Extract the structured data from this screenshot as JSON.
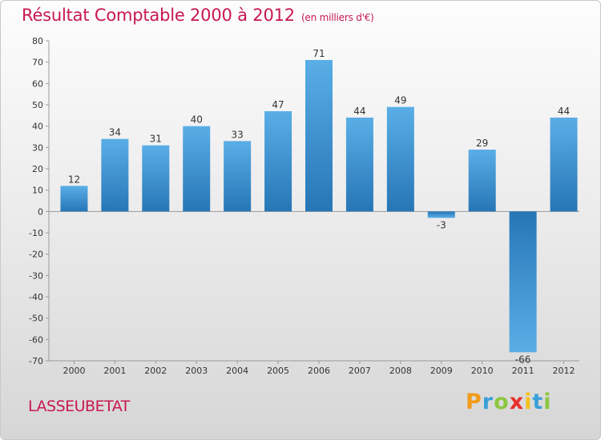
{
  "page": {
    "title": "Résultat Comptable 2000 à 2012",
    "subtitle": "(en milliers d'€)",
    "commune": "LASSEUBETAT",
    "logo": {
      "letters": [
        "P",
        "r",
        "o",
        "x",
        "i",
        "t",
        "i"
      ],
      "colors": [
        "#f29a1a",
        "#3aa0d8",
        "#8cc63f",
        "#e8302a",
        "#f2c21a",
        "#3aa0d8",
        "#8cc63f"
      ]
    }
  },
  "chart_data": {
    "type": "bar",
    "title": "Résultat Comptable 2000 à 2012",
    "subtitle": "(en milliers d'€)",
    "categories": [
      "2000",
      "2001",
      "2002",
      "2003",
      "2004",
      "2005",
      "2006",
      "2007",
      "2008",
      "2009",
      "2010",
      "2011",
      "2012"
    ],
    "values": [
      12,
      34,
      31,
      40,
      33,
      47,
      71,
      44,
      49,
      -3,
      29,
      -66,
      44
    ],
    "ylim": [
      -70,
      80
    ],
    "ytick_step": 10,
    "grid": false,
    "bar_color_top": "#5aaee6",
    "bar_color_bottom": "#2676b6"
  }
}
